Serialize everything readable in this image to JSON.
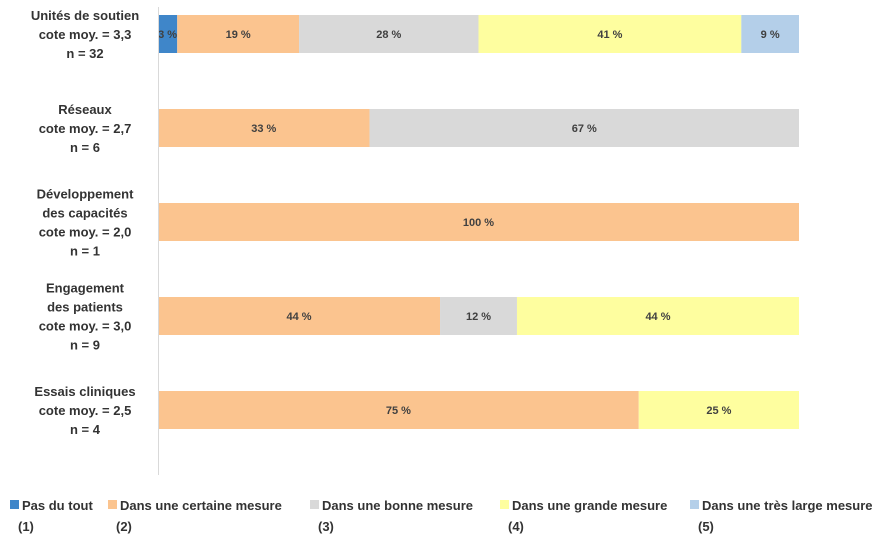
{
  "chart_data": {
    "type": "bar",
    "orientation": "horizontal",
    "stacked": true,
    "percent": true,
    "categories": [
      [
        "Unités de soutien",
        "cote moy. = 3,3",
        "n = 32"
      ],
      [
        "Réseaux",
        "cote moy. = 2,7",
        "n = 6"
      ],
      [
        "Développement",
        "des capacités",
        "cote moy. = 2,0",
        "n = 1"
      ],
      [
        "Engagement",
        "des patients",
        "cote moy. = 3,0",
        "n = 9"
      ],
      [
        "Essais cliniques",
        "cote moy. = 2,5",
        "n = 4"
      ]
    ],
    "series": [
      {
        "name": [
          "Pas du tout",
          "(1)"
        ],
        "color": "#3f86c9",
        "values": [
          3,
          0,
          0,
          0,
          0
        ]
      },
      {
        "name": [
          "Dans une certaine mesure",
          "(2)"
        ],
        "color": "#fbc48f",
        "values": [
          19,
          33,
          100,
          44,
          75
        ]
      },
      {
        "name": [
          "Dans une bonne mesure",
          "(3)"
        ],
        "color": "#d9d9d9",
        "values": [
          28,
          67,
          0,
          12,
          0
        ]
      },
      {
        "name": [
          "Dans une grande mesure",
          "(4)"
        ],
        "color": "#fefe9f",
        "values": [
          41,
          0,
          0,
          44,
          25
        ]
      },
      {
        "name": [
          "Dans une très large mesure",
          "(5)"
        ],
        "color": "#b4cfe9",
        "values": [
          9,
          0,
          0,
          0,
          0
        ]
      }
    ],
    "value_suffix": " %",
    "xlim": [
      0,
      100
    ],
    "legend_position": "bottom",
    "grid": false
  }
}
